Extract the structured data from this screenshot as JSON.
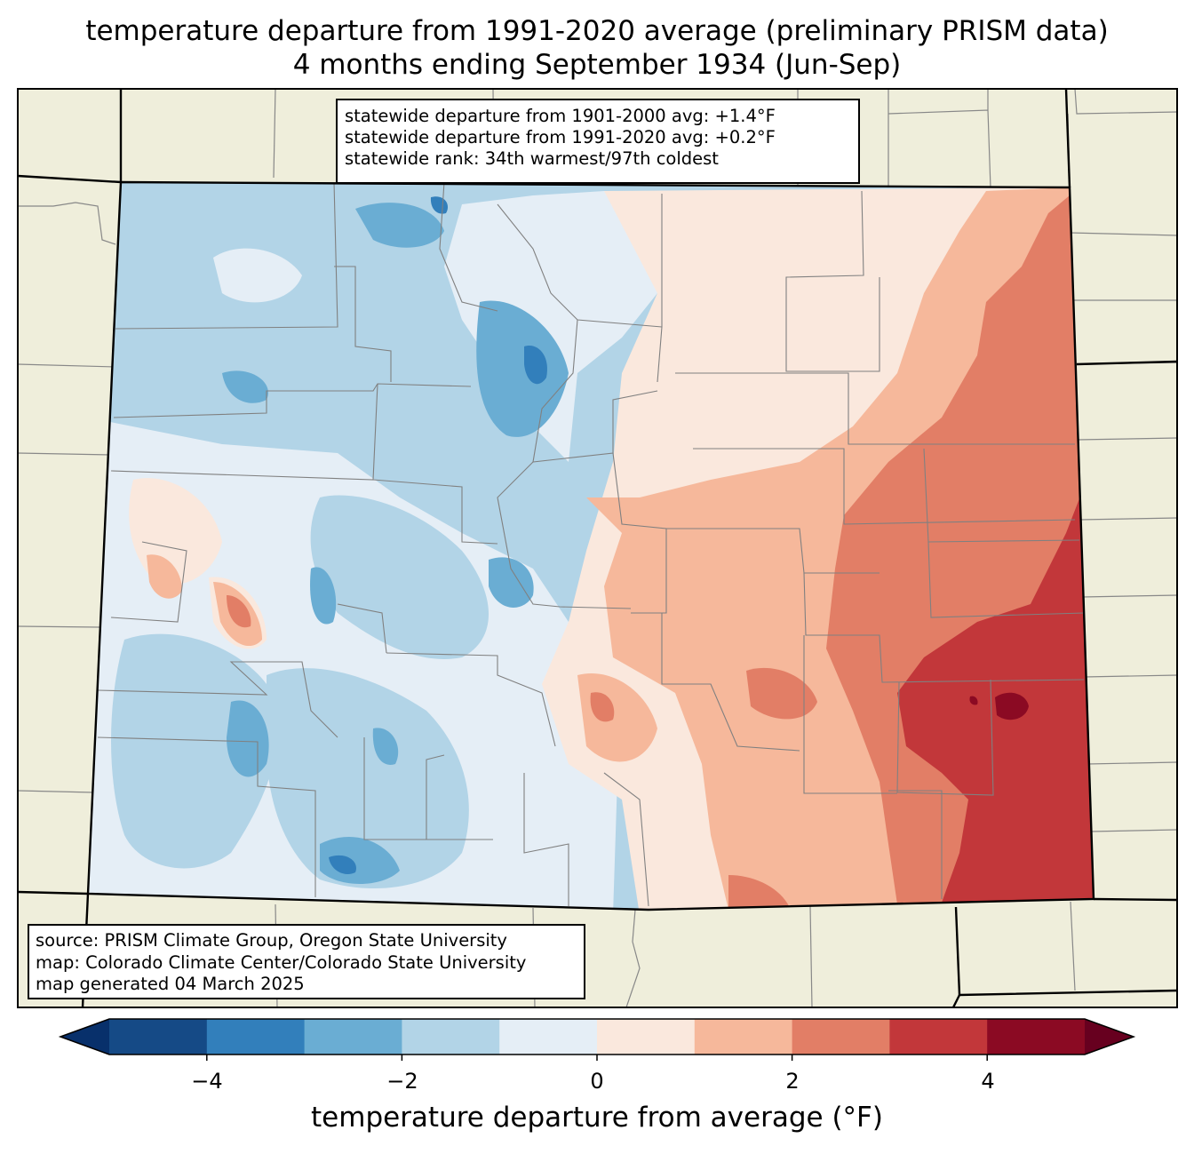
{
  "title": {
    "line1": "temperature departure from 1991-2020 average (preliminary PRISM data)",
    "line2": "4 months ending September 1934 (Jun-Sep)"
  },
  "stats": {
    "line1": "statewide departure from 1901-2000 avg: +1.4°F",
    "line2": "statewide departure from 1991-2020 avg: +0.2°F",
    "line3": "statewide rank: 34th warmest/97th coldest"
  },
  "source": {
    "line1": "source: PRISM Climate Group, Oregon State University",
    "line2": "map: Colorado Climate Center/Colorado State University",
    "line3": "map generated 04 March 2025"
  },
  "colorbar": {
    "label": "temperature departure from average (°F)",
    "ticks": [
      "−4",
      "−2",
      "0",
      "2",
      "4"
    ],
    "range": [
      -5,
      5
    ],
    "bins": [
      {
        "min": -5,
        "max": -4,
        "color": "#154a86"
      },
      {
        "min": -4,
        "max": -3,
        "color": "#327fbb"
      },
      {
        "min": -3,
        "max": -2,
        "color": "#6aadd3"
      },
      {
        "min": -2,
        "max": -1,
        "color": "#b2d4e7"
      },
      {
        "min": -1,
        "max": 0,
        "color": "#e5eef6"
      },
      {
        "min": 0,
        "max": 1,
        "color": "#fae8dd"
      },
      {
        "min": 1,
        "max": 2,
        "color": "#f6b89b"
      },
      {
        "min": 2,
        "max": 3,
        "color": "#e27e66"
      },
      {
        "min": 3,
        "max": 4,
        "color": "#c2373a"
      },
      {
        "min": 4,
        "max": 5,
        "color": "#8b0a23"
      }
    ],
    "under_color": "#08306b",
    "over_color": "#67001f"
  },
  "colors": {
    "land": "#efeedb",
    "border": "#000000",
    "county": "#808080"
  }
}
